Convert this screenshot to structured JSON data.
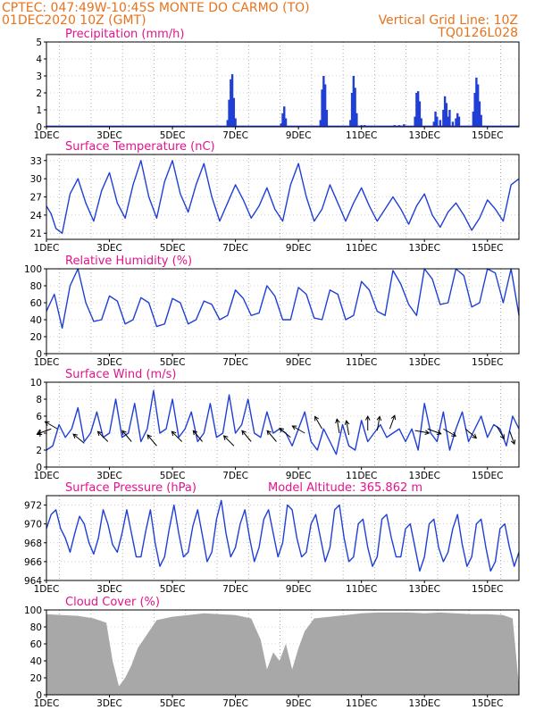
{
  "header": {
    "line1": "CPTEC:  047:49W-10:45S  MONTE DO CARMO (TO)",
    "line2_left": "01DEC2020 10Z (GMT)",
    "line2_right": "Vertical Grid Line: 10Z",
    "line3_right": "TQ0126L028"
  },
  "colors": {
    "header": "#e8731c",
    "title": "#e0148c",
    "series": "#1f3fd6",
    "cloud": "#a8a8a8",
    "arrow": "#000000"
  },
  "x_ticks": [
    "1DEC",
    "3DEC",
    "5DEC",
    "7DEC",
    "9DEC",
    "11DEC",
    "13DEC",
    "15DEC"
  ],
  "chart_data": [
    {
      "id": "precip",
      "type": "bar",
      "title": "Precipitation (mm/h)",
      "ylim": [
        0,
        5
      ],
      "yticks": [
        "0",
        "1",
        "2",
        "3",
        "4",
        "5"
      ],
      "x_unit": "days since 01DEC2020 00Z",
      "bars": [
        [
          5.75,
          0.4
        ],
        [
          5.8,
          1.6
        ],
        [
          5.85,
          2.8
        ],
        [
          5.9,
          3.1
        ],
        [
          5.95,
          1.7
        ],
        [
          6.0,
          0.5
        ],
        [
          7.45,
          0.2
        ],
        [
          7.5,
          0.8
        ],
        [
          7.55,
          1.2
        ],
        [
          7.6,
          0.5
        ],
        [
          8.7,
          0.4
        ],
        [
          8.75,
          2.2
        ],
        [
          8.8,
          3.0
        ],
        [
          8.85,
          2.5
        ],
        [
          8.9,
          1.0
        ],
        [
          9.65,
          0.4
        ],
        [
          9.7,
          2.0
        ],
        [
          9.75,
          3.0
        ],
        [
          9.8,
          2.3
        ],
        [
          9.85,
          0.8
        ],
        [
          10.0,
          0.1
        ],
        [
          10.1,
          0.1
        ],
        [
          11.05,
          0.1
        ],
        [
          11.2,
          0.1
        ],
        [
          11.35,
          0.15
        ],
        [
          11.7,
          0.6
        ],
        [
          11.75,
          2.0
        ],
        [
          11.8,
          2.1
        ],
        [
          11.85,
          1.5
        ],
        [
          11.9,
          0.5
        ],
        [
          12.3,
          0.3
        ],
        [
          12.35,
          0.9
        ],
        [
          12.4,
          0.6
        ],
        [
          12.5,
          0.4
        ],
        [
          12.6,
          1.0
        ],
        [
          12.65,
          1.8
        ],
        [
          12.7,
          1.4
        ],
        [
          12.75,
          0.6
        ],
        [
          12.8,
          1.0
        ],
        [
          12.9,
          0.3
        ],
        [
          13.0,
          0.5
        ],
        [
          13.05,
          0.8
        ],
        [
          13.1,
          0.6
        ],
        [
          13.55,
          0.9
        ],
        [
          13.6,
          2.0
        ],
        [
          13.65,
          2.9
        ],
        [
          13.7,
          2.5
        ],
        [
          13.75,
          1.5
        ],
        [
          13.8,
          0.7
        ]
      ]
    },
    {
      "id": "temp",
      "type": "line",
      "title": "Surface Temperature (nC)",
      "ylim": [
        20,
        34
      ],
      "yticks": [
        "21",
        "24",
        "27",
        "30",
        "33"
      ],
      "x": [
        0,
        0.15,
        0.3,
        0.5,
        0.75,
        1.0,
        1.25,
        1.5,
        1.75,
        2.0,
        2.25,
        2.5,
        2.75,
        3.0,
        3.25,
        3.5,
        3.75,
        4.0,
        4.25,
        4.5,
        4.75,
        5.0,
        5.25,
        5.5,
        5.75,
        6.0,
        6.25,
        6.5,
        6.75,
        7.0,
        7.25,
        7.5,
        7.75,
        8.0,
        8.25,
        8.5,
        8.75,
        9.0,
        9.25,
        9.5,
        9.75,
        10.0,
        10.25,
        10.5,
        10.75,
        11.0,
        11.25,
        11.5,
        11.75,
        12.0,
        12.25,
        12.5,
        12.75,
        13.0,
        13.25,
        13.5,
        13.75,
        14.0,
        14.25,
        14.5,
        14.75,
        15.0
      ],
      "y": [
        25.5,
        24.2,
        21.8,
        21.0,
        27.5,
        30.0,
        26.0,
        23.0,
        28.0,
        31.0,
        26.0,
        23.5,
        29.0,
        33.0,
        27.0,
        23.5,
        29.5,
        33.0,
        27.5,
        24.5,
        29.0,
        32.5,
        27.0,
        23.0,
        26.0,
        29.0,
        26.5,
        23.5,
        25.5,
        28.5,
        25.0,
        23.0,
        29.0,
        32.5,
        27.0,
        23.0,
        25.0,
        29.0,
        26.0,
        23.0,
        26.0,
        28.5,
        25.5,
        23.0,
        25.0,
        27.0,
        25.0,
        22.5,
        25.5,
        27.5,
        24.0,
        22.0,
        24.5,
        26.0,
        24.0,
        21.5,
        23.5,
        26.5,
        25.0,
        23.0,
        29.0,
        30.0
      ]
    },
    {
      "id": "rh",
      "type": "line",
      "title": "Relative Humidity (%)",
      "ylim": [
        0,
        100
      ],
      "yticks": [
        "0",
        "20",
        "40",
        "60",
        "80",
        "100"
      ],
      "x": [
        0,
        0.25,
        0.5,
        0.75,
        1.0,
        1.25,
        1.5,
        1.75,
        2.0,
        2.25,
        2.5,
        2.75,
        3.0,
        3.25,
        3.5,
        3.75,
        4.0,
        4.25,
        4.5,
        4.75,
        5.0,
        5.25,
        5.5,
        5.75,
        6.0,
        6.25,
        6.5,
        6.75,
        7.0,
        7.25,
        7.5,
        7.75,
        8.0,
        8.25,
        8.5,
        8.75,
        9.0,
        9.25,
        9.5,
        9.75,
        10.0,
        10.25,
        10.5,
        10.75,
        11.0,
        11.25,
        11.5,
        11.75,
        12.0,
        12.25,
        12.5,
        12.75,
        13.0,
        13.25,
        13.5,
        13.75,
        14.0,
        14.25,
        14.5,
        14.75,
        15.0
      ],
      "y": [
        50,
        70,
        30,
        80,
        100,
        60,
        38,
        40,
        68,
        62,
        35,
        40,
        66,
        60,
        32,
        35,
        65,
        60,
        35,
        40,
        62,
        58,
        40,
        45,
        75,
        65,
        45,
        48,
        80,
        68,
        40,
        40,
        78,
        70,
        42,
        40,
        75,
        70,
        40,
        45,
        85,
        75,
        50,
        45,
        98,
        82,
        58,
        45,
        100,
        88,
        58,
        60,
        100,
        92,
        55,
        60,
        100,
        95,
        60,
        100,
        45
      ]
    },
    {
      "id": "wind",
      "type": "line",
      "title": "Surface Wind (m/s)",
      "ylim": [
        0,
        10
      ],
      "yticks": [
        "0",
        "2",
        "4",
        "6",
        "8",
        "10"
      ],
      "x": [
        0,
        0.2,
        0.4,
        0.6,
        0.8,
        1.0,
        1.2,
        1.4,
        1.6,
        1.8,
        2.0,
        2.2,
        2.4,
        2.6,
        2.8,
        3.0,
        3.2,
        3.4,
        3.6,
        3.8,
        4.0,
        4.2,
        4.4,
        4.6,
        4.8,
        5.0,
        5.2,
        5.4,
        5.6,
        5.8,
        6.0,
        6.2,
        6.4,
        6.6,
        6.8,
        7.0,
        7.2,
        7.4,
        7.6,
        7.8,
        8.0,
        8.2,
        8.4,
        8.6,
        8.8,
        9.0,
        9.2,
        9.4,
        9.6,
        9.8,
        10.0,
        10.2,
        10.4,
        10.6,
        10.8,
        11.0,
        11.2,
        11.4,
        11.6,
        11.8,
        12.0,
        12.2,
        12.4,
        12.6,
        12.8,
        13.0,
        13.2,
        13.4,
        13.6,
        13.8,
        14.0,
        14.2,
        14.4,
        14.6,
        14.8,
        15.0
      ],
      "y": [
        2.0,
        2.5,
        5.0,
        3.5,
        4.5,
        7.0,
        3.0,
        4.0,
        6.5,
        3.5,
        4.0,
        8.0,
        3.5,
        4.0,
        7.5,
        3.0,
        4.5,
        9.0,
        4.0,
        4.5,
        8.0,
        3.5,
        4.5,
        6.5,
        3.0,
        4.0,
        7.5,
        3.5,
        4.0,
        8.5,
        4.0,
        5.0,
        8.0,
        4.0,
        3.5,
        6.5,
        4.0,
        4.5,
        4.0,
        2.5,
        4.5,
        6.5,
        3.0,
        2.0,
        4.5,
        3.0,
        1.5,
        5.0,
        2.5,
        2.0,
        5.5,
        3.0,
        4.0,
        5.0,
        3.5,
        4.0,
        4.5,
        3.0,
        4.5,
        2.0,
        7.5,
        4.0,
        3.0,
        6.5,
        2.0,
        4.5,
        6.5,
        3.0,
        4.5,
        6.0,
        3.5,
        5.0,
        4.5,
        2.5,
        6.0,
        4.5
      ],
      "arrows": [
        [
          0.15,
          4.5,
          160
        ],
        [
          0.35,
          4.5,
          210
        ],
        [
          1.2,
          2.8,
          220
        ],
        [
          1.95,
          3.0,
          225
        ],
        [
          2.7,
          3.0,
          230
        ],
        [
          3.5,
          2.5,
          230
        ],
        [
          4.3,
          3.0,
          225
        ],
        [
          4.95,
          3.0,
          230
        ],
        [
          5.95,
          2.5,
          225
        ],
        [
          6.5,
          3.0,
          230
        ],
        [
          7.3,
          3.0,
          230
        ],
        [
          7.75,
          3.5,
          220
        ],
        [
          8.2,
          4.0,
          210
        ],
        [
          8.75,
          4.5,
          240
        ],
        [
          9.3,
          4.0,
          260
        ],
        [
          9.6,
          3.8,
          260
        ],
        [
          10.2,
          4.3,
          270
        ],
        [
          10.5,
          4.3,
          280
        ],
        [
          10.9,
          4.5,
          290
        ],
        [
          11.7,
          4.3,
          10
        ],
        [
          12.1,
          4.5,
          20
        ],
        [
          12.6,
          4.5,
          30
        ],
        [
          13.3,
          4.5,
          40
        ],
        [
          14.3,
          4.8,
          60
        ],
        [
          14.7,
          4.3,
          70
        ]
      ]
    },
    {
      "id": "pres",
      "type": "line",
      "title": "Surface Pressure (hPa)",
      "subtitle": "Model Altitude: 365.862 m",
      "ylim": [
        964,
        973
      ],
      "yticks": [
        "964",
        "966",
        "968",
        "970",
        "972"
      ],
      "x": [
        0,
        0.15,
        0.3,
        0.45,
        0.6,
        0.75,
        0.9,
        1.05,
        1.2,
        1.35,
        1.5,
        1.65,
        1.8,
        1.95,
        2.1,
        2.25,
        2.4,
        2.55,
        2.7,
        2.85,
        3.0,
        3.15,
        3.3,
        3.45,
        3.6,
        3.75,
        3.9,
        4.05,
        4.2,
        4.35,
        4.5,
        4.65,
        4.8,
        4.95,
        5.1,
        5.25,
        5.4,
        5.55,
        5.7,
        5.85,
        6.0,
        6.15,
        6.3,
        6.45,
        6.6,
        6.75,
        6.9,
        7.05,
        7.2,
        7.35,
        7.5,
        7.65,
        7.8,
        7.95,
        8.1,
        8.25,
        8.4,
        8.55,
        8.7,
        8.85,
        9.0,
        9.15,
        9.3,
        9.45,
        9.6,
        9.75,
        9.9,
        10.05,
        10.2,
        10.35,
        10.5,
        10.65,
        10.8,
        10.95,
        11.1,
        11.25,
        11.4,
        11.55,
        11.7,
        11.85,
        12.0,
        12.15,
        12.3,
        12.45,
        12.6,
        12.75,
        12.9,
        13.05,
        13.2,
        13.35,
        13.5,
        13.65,
        13.8,
        13.95,
        14.1,
        14.25,
        14.4,
        14.55,
        14.7,
        14.85,
        15.0
      ],
      "y": [
        969.5,
        971.0,
        971.5,
        969.5,
        968.5,
        967.0,
        969.0,
        970.8,
        970.0,
        968.0,
        966.8,
        968.5,
        971.5,
        970.0,
        967.8,
        967.0,
        969.0,
        971.5,
        969.0,
        966.5,
        966.5,
        969.2,
        971.5,
        968.0,
        965.5,
        966.5,
        969.5,
        972.0,
        969.0,
        966.5,
        967.0,
        969.8,
        971.5,
        968.8,
        966.0,
        967.0,
        970.5,
        972.5,
        969.0,
        966.5,
        967.5,
        970.0,
        971.5,
        968.5,
        966.0,
        967.5,
        970.5,
        971.5,
        969.0,
        966.5,
        968.0,
        972.0,
        971.5,
        968.5,
        966.5,
        967.0,
        970.0,
        971.0,
        968.5,
        966.0,
        967.5,
        971.5,
        972.0,
        968.5,
        966.0,
        966.5,
        970.0,
        970.5,
        967.5,
        965.5,
        966.5,
        970.5,
        971.0,
        968.5,
        966.5,
        966.5,
        969.5,
        970.0,
        967.5,
        965.0,
        966.5,
        970.0,
        970.5,
        967.5,
        966.0,
        967.0,
        969.5,
        971.0,
        967.8,
        965.5,
        966.5,
        970.0,
        970.5,
        967.5,
        965.0,
        966.0,
        969.5,
        970.0,
        967.5,
        965.5,
        967.0
      ]
    },
    {
      "id": "cloud",
      "type": "bar",
      "title": "Cloud Cover (%)",
      "ylim": [
        0,
        100
      ],
      "yticks": [
        "0",
        "20",
        "40",
        "60",
        "80",
        "100"
      ],
      "x": [
        0.0,
        0.5,
        1.0,
        1.5,
        1.9,
        2.1,
        2.3,
        2.5,
        2.7,
        2.9,
        3.5,
        4.0,
        4.5,
        5.0,
        5.5,
        6.0,
        6.5,
        6.8,
        7.0,
        7.2,
        7.4,
        7.6,
        7.8,
        8.0,
        8.2,
        8.5,
        9.0,
        9.5,
        10.0,
        10.5,
        11.0,
        11.5,
        12.0,
        12.5,
        13.0,
        13.5,
        14.0,
        14.5,
        14.8,
        15.0
      ],
      "y": [
        95,
        94,
        93,
        90,
        85,
        40,
        10,
        20,
        35,
        55,
        88,
        92,
        94,
        96,
        95,
        94,
        90,
        65,
        30,
        50,
        40,
        60,
        30,
        55,
        75,
        90,
        92,
        94,
        96,
        97,
        97,
        97,
        96,
        97,
        96,
        95,
        95,
        94,
        90,
        10
      ]
    }
  ]
}
